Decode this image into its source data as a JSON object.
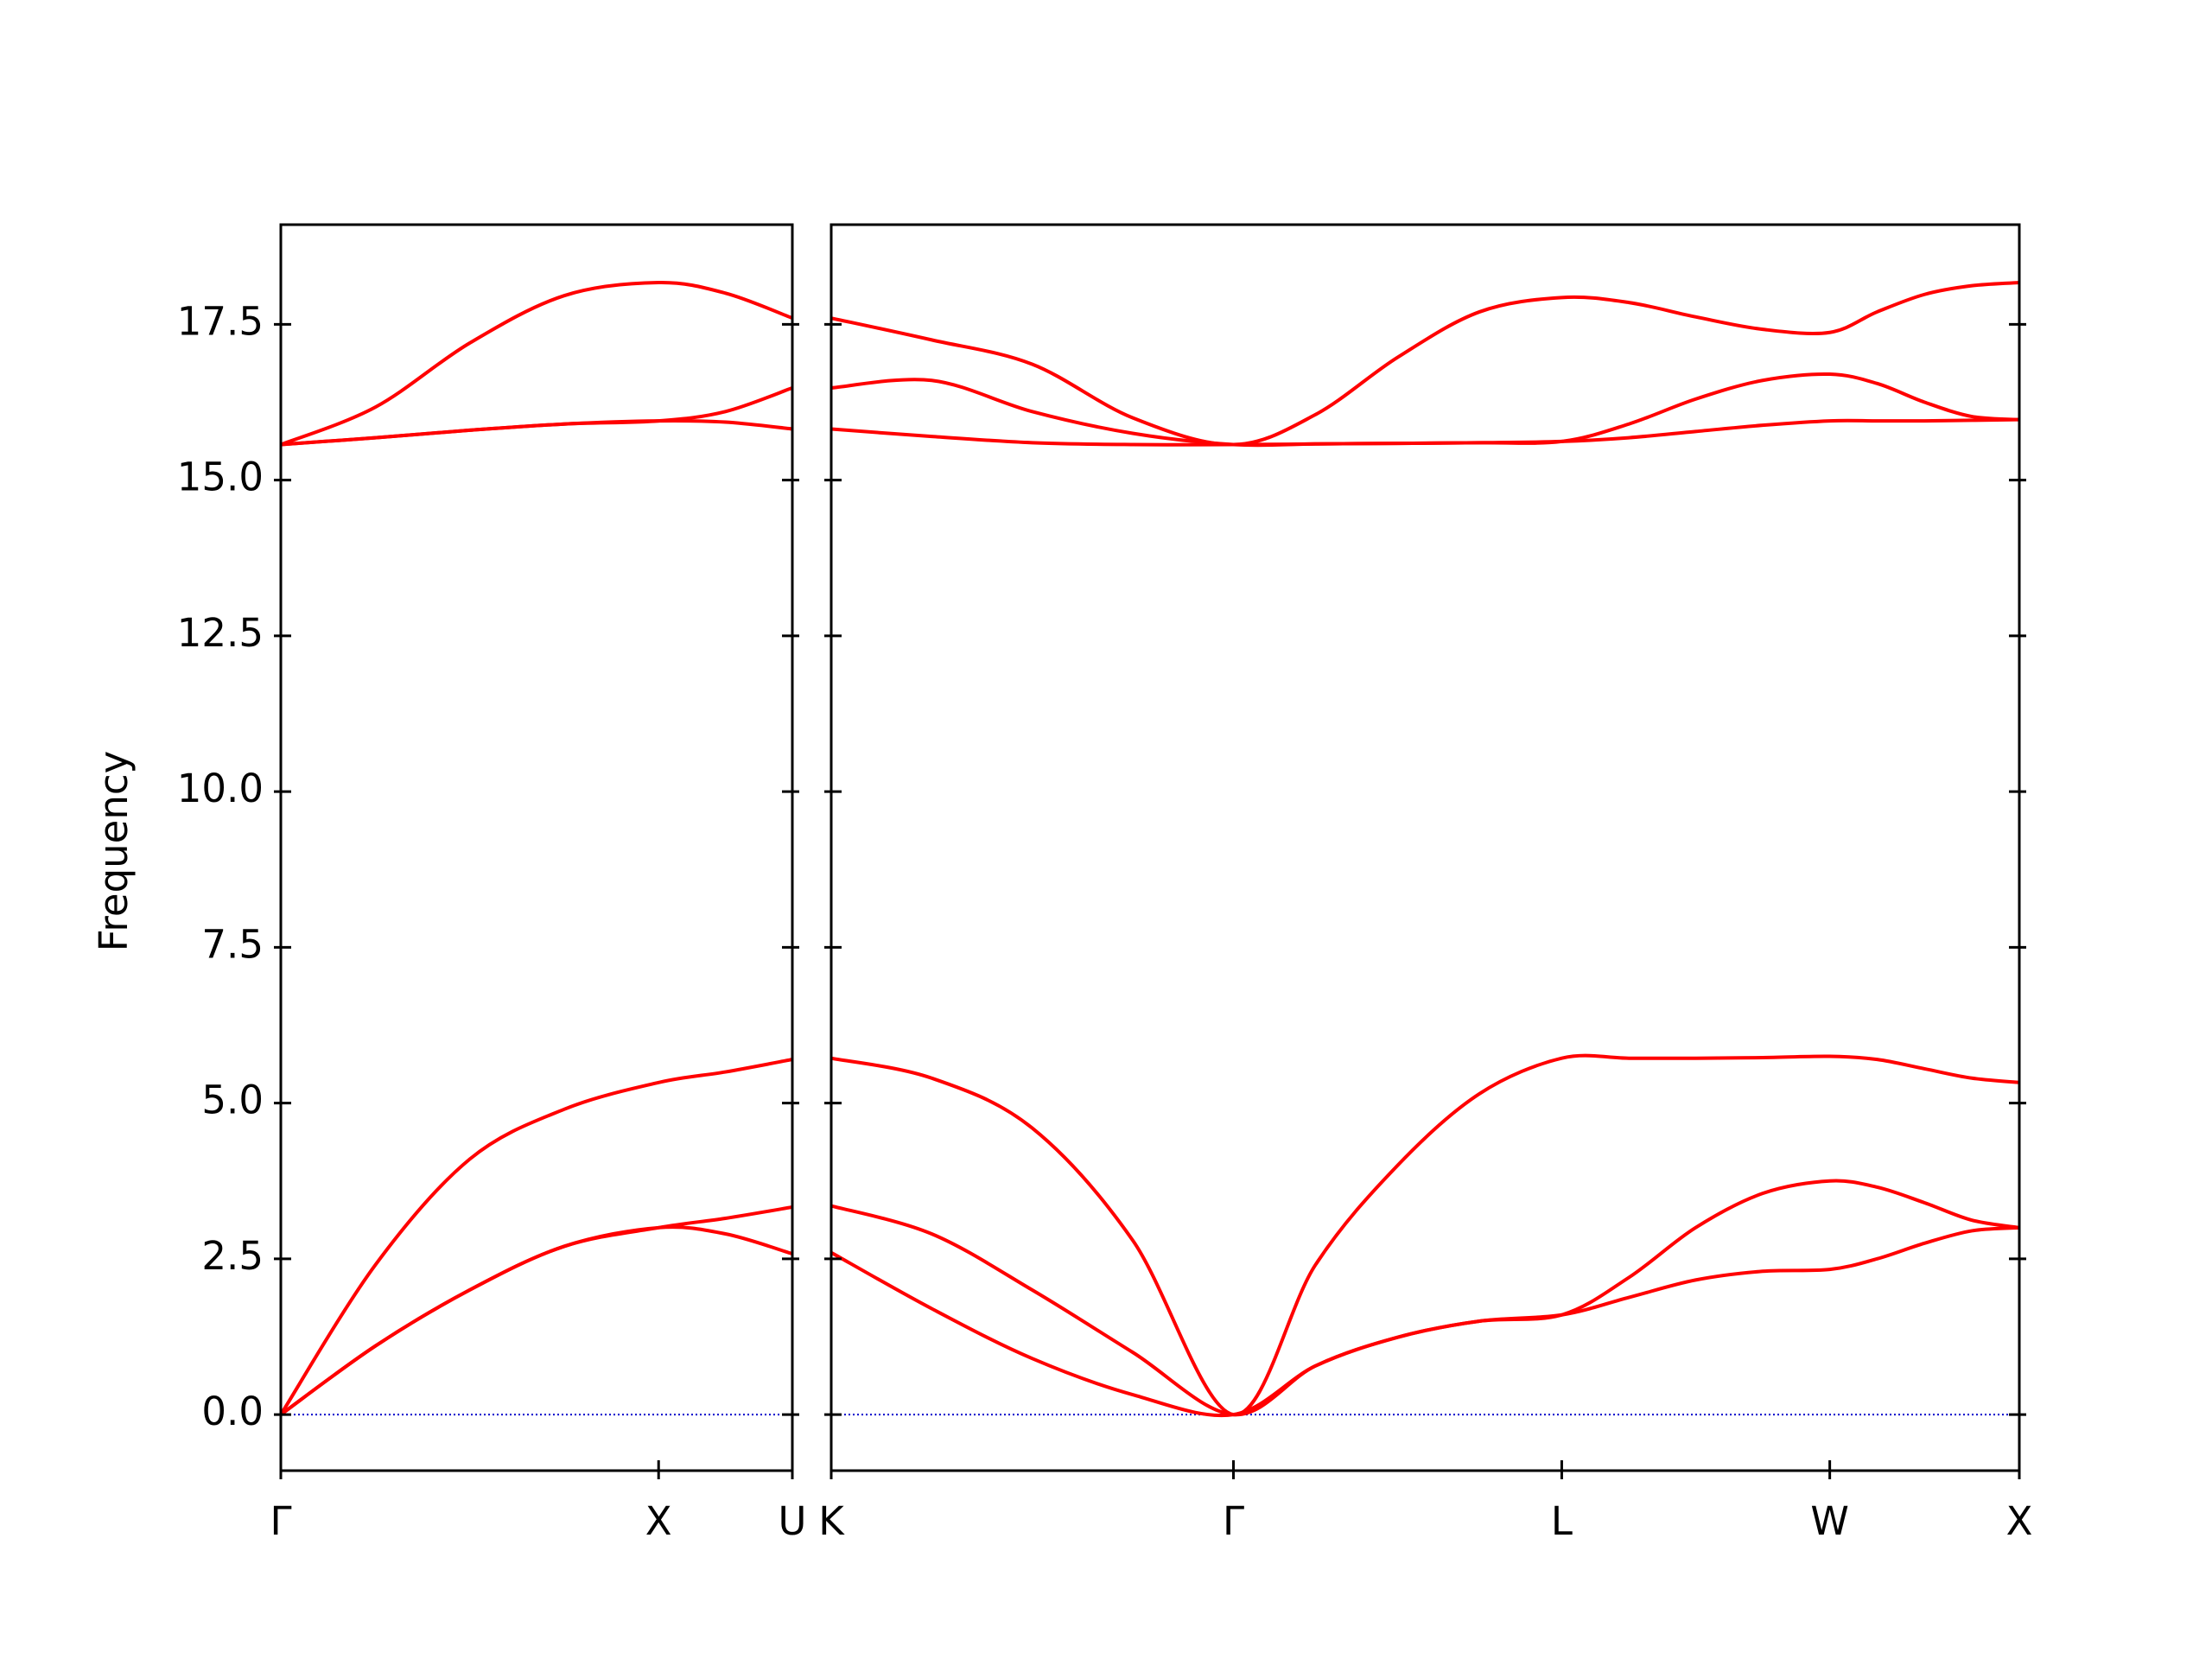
{
  "chart_data": [
    {
      "type": "line",
      "ylabel": "Frequency",
      "xlim": [
        0,
        1.354
      ],
      "ylim": [
        -0.9,
        19.1
      ],
      "xticks": [
        {
          "value": 0,
          "label": "Γ"
        },
        {
          "value": 1.0,
          "label": "X"
        },
        {
          "value": 1.354,
          "label": "U"
        }
      ],
      "yticks": [
        {
          "value": 0,
          "label": "0.0"
        },
        2.5,
        {
          "value": 5,
          "label": "5.0"
        },
        7.5,
        {
          "value": 10,
          "label": "10.0"
        },
        12.5,
        {
          "value": 15,
          "label": "15.0"
        },
        17.5
      ],
      "hline": {
        "value": 0,
        "color": "#0000cc",
        "style": "dotted"
      },
      "x": [
        0,
        0.25,
        0.5,
        0.75,
        1.0,
        1.177,
        1.354
      ],
      "series": [
        {
          "color": "#ff0000",
          "values": [
            0,
            1.1,
            2.0,
            2.7,
            3.0,
            2.9,
            2.58
          ]
        },
        {
          "color": "#ff0000",
          "values": [
            0,
            1.1,
            2.0,
            2.7,
            3.0,
            3.15,
            3.33
          ]
        },
        {
          "color": "#ff0000",
          "values": [
            0,
            2.4,
            4.1,
            4.9,
            5.33,
            5.5,
            5.7
          ]
        },
        {
          "color": "#ff0000",
          "values": [
            15.57,
            15.68,
            15.8,
            15.9,
            15.95,
            15.93,
            15.82
          ]
        },
        {
          "color": "#ff0000",
          "values": [
            15.57,
            15.68,
            15.8,
            15.9,
            15.95,
            16.1,
            16.48
          ]
        },
        {
          "color": "#ff0000",
          "values": [
            15.57,
            16.17,
            17.2,
            17.96,
            18.17,
            18.0,
            17.6
          ]
        }
      ]
    },
    {
      "type": "line",
      "xlim": [
        0,
        3.134
      ],
      "ylim": [
        -0.9,
        19.1
      ],
      "xticks": [
        {
          "value": 0,
          "label": "K"
        },
        {
          "value": 1.061,
          "label": "Γ"
        },
        {
          "value": 1.927,
          "label": "L"
        },
        {
          "value": 2.634,
          "label": "W"
        },
        {
          "value": 3.134,
          "label": "X"
        }
      ],
      "yticks": [
        {
          "value": 0,
          "label": "0.0"
        },
        2.5,
        {
          "value": 5,
          "label": "5.0"
        },
        7.5,
        {
          "value": 10,
          "label": "10.0"
        },
        12.5,
        {
          "value": 15,
          "label": "15.0"
        },
        17.5
      ],
      "hline": {
        "value": 0,
        "color": "#0000cc",
        "style": "dotted"
      },
      "x": [
        0,
        0.265,
        0.53,
        0.795,
        1.061,
        1.277,
        1.494,
        1.71,
        1.927,
        2.104,
        2.28,
        2.457,
        2.634,
        2.759,
        2.884,
        3.009,
        3.134
      ],
      "series": [
        {
          "color": "#ff0000",
          "values": [
            2.6,
            1.7,
            0.9,
            0.32,
            0,
            0.78,
            1.24,
            1.5,
            1.6,
            1.88,
            2.16,
            2.3,
            2.33,
            2.5,
            2.75,
            2.95,
            3.0
          ]
        },
        {
          "color": "#ff0000",
          "values": [
            3.35,
            2.9,
            2.0,
            1.0,
            0,
            0.78,
            1.24,
            1.5,
            1.6,
            2.2,
            3.0,
            3.55,
            3.75,
            3.65,
            3.4,
            3.12,
            3.0
          ]
        },
        {
          "color": "#ff0000",
          "values": [
            5.72,
            5.4,
            4.6,
            2.8,
            0,
            2.4,
            4.0,
            5.15,
            5.72,
            5.72,
            5.72,
            5.73,
            5.75,
            5.7,
            5.55,
            5.4,
            5.33
          ]
        },
        {
          "color": "#ff0000",
          "values": [
            15.82,
            15.7,
            15.6,
            15.57,
            15.57,
            15.58,
            15.59,
            15.6,
            15.62,
            15.68,
            15.78,
            15.88,
            15.95,
            15.95,
            15.95,
            15.96,
            15.97
          ]
        },
        {
          "color": "#ff0000",
          "values": [
            16.48,
            16.6,
            16.1,
            15.75,
            15.57,
            15.58,
            15.59,
            15.6,
            15.62,
            15.9,
            16.3,
            16.6,
            16.7,
            16.55,
            16.25,
            16.02,
            15.97
          ]
        },
        {
          "color": "#ff0000",
          "values": [
            17.6,
            17.25,
            16.86,
            16.0,
            15.57,
            16.05,
            16.97,
            17.7,
            17.93,
            17.85,
            17.62,
            17.42,
            17.37,
            17.7,
            17.98,
            18.12,
            18.17
          ]
        }
      ]
    }
  ]
}
